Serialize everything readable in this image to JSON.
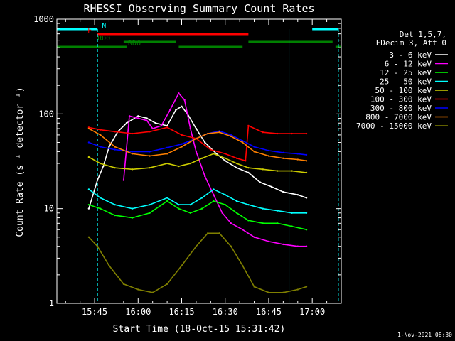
{
  "chart_data": {
    "type": "line",
    "title": "RHESSI Observing Summary Count Rates",
    "xlabel": "Start Time (18-Oct-15 15:31:42)",
    "ylabel": "Count Rate (s⁻¹ detector⁻¹)",
    "y_scale": "log",
    "ylim": [
      1,
      1000
    ],
    "xlim": [
      "15:32",
      "17:10"
    ],
    "x_ticks": [
      "15:45",
      "16:00",
      "16:15",
      "16:30",
      "16:45",
      "17:00"
    ],
    "y_ticks": [
      "1",
      "10",
      "100",
      "1000"
    ],
    "legend_header": [
      "Det 1,5,7,",
      "FDecim 3, Att 0"
    ],
    "legend_position": "top-right",
    "timestamp": "1-Nov-2021 08:30",
    "flag_bars": [
      {
        "label": "N",
        "color": "#00ffff",
        "segments": [
          [
            "15:32",
            "15:46"
          ],
          [
            "17:00",
            "17:09"
          ]
        ]
      },
      {
        "label": "F",
        "color": "#ff0000",
        "segments": [
          [
            "15:46",
            "16:38"
          ]
        ]
      },
      {
        "label": "RD0",
        "color": "#008000",
        "segments": [
          [
            "15:55",
            "16:13"
          ],
          [
            "16:38",
            "17:07"
          ]
        ]
      },
      {
        "label": "RD6",
        "color": "#008000",
        "segments": [
          [
            "15:32",
            "15:56"
          ],
          [
            "16:14",
            "16:36"
          ],
          [
            "17:08",
            "17:10"
          ]
        ]
      }
    ],
    "vertical_lines": {
      "color": "#00ffff",
      "solid": [
        "15:32",
        "16:52"
      ],
      "dashed": [
        "15:46",
        "17:09"
      ]
    },
    "series": [
      {
        "name": "3 - 6 keV",
        "color": "#ffffff",
        "x": [
          "15:43",
          "15:46",
          "15:48",
          "15:50",
          "15:53",
          "15:56",
          "16:00",
          "16:03",
          "16:06",
          "16:10",
          "16:13",
          "16:15",
          "16:17",
          "16:20",
          "16:23",
          "16:27",
          "16:30",
          "16:34",
          "16:38",
          "16:42",
          "16:46",
          "16:50",
          "16:55",
          "16:58"
        ],
        "y": [
          10,
          20,
          28,
          45,
          65,
          80,
          95,
          90,
          80,
          75,
          110,
          120,
          100,
          70,
          50,
          38,
          32,
          27,
          24,
          19,
          17,
          15,
          14,
          13
        ]
      },
      {
        "name": "6 - 12 keV",
        "color": "#ff00ff",
        "x": [
          "15:55",
          "15:57",
          "16:00",
          "16:03",
          "16:05",
          "16:08",
          "16:11",
          "16:14",
          "16:16",
          "16:18",
          "16:20",
          "16:23",
          "16:26",
          "16:29",
          "16:32",
          "16:36",
          "16:40",
          "16:45",
          "16:50",
          "16:55",
          "16:58"
        ],
        "y": [
          20,
          95,
          90,
          85,
          70,
          75,
          110,
          165,
          140,
          70,
          40,
          22,
          14,
          9,
          7,
          6,
          5,
          4.5,
          4.2,
          4,
          4
        ]
      },
      {
        "name": "12 - 25 keV",
        "color": "#00ff00",
        "x": [
          "15:43",
          "15:47",
          "15:52",
          "15:58",
          "16:04",
          "16:10",
          "16:14",
          "16:18",
          "16:22",
          "16:26",
          "16:30",
          "16:34",
          "16:38",
          "16:43",
          "16:48",
          "16:53",
          "16:58"
        ],
        "y": [
          11,
          10,
          8.5,
          8,
          9,
          12,
          10,
          9,
          10,
          12,
          11,
          9,
          7.5,
          7,
          7,
          6.5,
          6
        ]
      },
      {
        "name": "25 - 50 keV",
        "color": "#00ffff",
        "x": [
          "15:43",
          "15:47",
          "15:52",
          "15:58",
          "16:04",
          "16:10",
          "16:14",
          "16:18",
          "16:22",
          "16:26",
          "16:30",
          "16:34",
          "16:38",
          "16:43",
          "16:48",
          "16:53",
          "16:58"
        ],
        "y": [
          16,
          13,
          11,
          10,
          11,
          13,
          11,
          11,
          13,
          16,
          14,
          12,
          11,
          10,
          9.5,
          9,
          9
        ]
      },
      {
        "name": "50 - 100 keV",
        "color": "#cccc00",
        "x": [
          "15:43",
          "15:47",
          "15:52",
          "15:58",
          "16:04",
          "16:10",
          "16:14",
          "16:18",
          "16:22",
          "16:26",
          "16:30",
          "16:34",
          "16:38",
          "16:43",
          "16:48",
          "16:53",
          "16:58"
        ],
        "y": [
          35,
          30,
          27,
          26,
          27,
          30,
          28,
          30,
          34,
          38,
          34,
          30,
          27,
          26,
          25,
          25,
          24
        ]
      },
      {
        "name": "100 - 300 keV",
        "color": "#ff0000",
        "x": [
          "15:43",
          "15:47",
          "15:52",
          "15:58",
          "16:04",
          "16:10",
          "16:15",
          "16:20",
          "16:25",
          "16:30",
          "16:34",
          "16:37",
          "16:38",
          "16:43",
          "16:48",
          "16:53",
          "16:58"
        ],
        "y": [
          72,
          68,
          65,
          62,
          65,
          72,
          60,
          55,
          42,
          38,
          34,
          32,
          75,
          64,
          62,
          62,
          62
        ]
      },
      {
        "name": "300 - 800 keV",
        "color": "#0000ff",
        "x": [
          "15:43",
          "15:47",
          "15:52",
          "15:58",
          "16:04",
          "16:10",
          "16:15",
          "16:20",
          "16:24",
          "16:28",
          "16:32",
          "16:36",
          "16:40",
          "16:45",
          "16:50",
          "16:55",
          "16:58"
        ],
        "y": [
          50,
          45,
          42,
          40,
          40,
          44,
          48,
          55,
          62,
          66,
          60,
          52,
          45,
          41,
          39,
          38,
          37
        ]
      },
      {
        "name": "800 - 7000 keV",
        "color": "#ff8000",
        "x": [
          "15:43",
          "15:47",
          "15:52",
          "15:58",
          "16:04",
          "16:10",
          "16:15",
          "16:20",
          "16:24",
          "16:28",
          "16:32",
          "16:36",
          "16:40",
          "16:45",
          "16:50",
          "16:55",
          "16:58"
        ],
        "y": [
          70,
          60,
          45,
          38,
          36,
          38,
          45,
          55,
          62,
          64,
          58,
          50,
          40,
          36,
          34,
          33,
          32
        ]
      },
      {
        "name": "7000 - 15000 keV",
        "color": "#808000",
        "x": [
          "15:43",
          "15:46",
          "15:50",
          "15:55",
          "16:00",
          "16:05",
          "16:10",
          "16:15",
          "16:20",
          "16:24",
          "16:28",
          "16:32",
          "16:36",
          "16:40",
          "16:45",
          "16:50",
          "16:55",
          "16:58"
        ],
        "y": [
          5,
          4,
          2.5,
          1.6,
          1.4,
          1.3,
          1.6,
          2.5,
          4,
          5.5,
          5.5,
          4,
          2.5,
          1.5,
          1.3,
          1.3,
          1.4,
          1.5
        ]
      }
    ]
  }
}
